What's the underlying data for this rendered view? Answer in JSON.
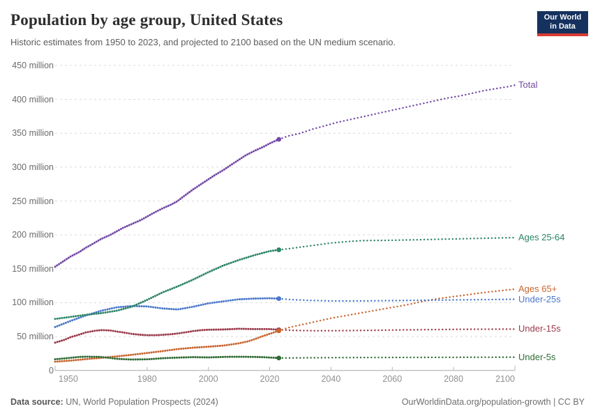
{
  "header": {
    "title": "Population by age group, United States",
    "subtitle": "Historic estimates from 1950 to 2023, and projected to 2100 based on the UN medium scenario."
  },
  "logo": {
    "line1": "Our World",
    "line2": "in Data",
    "bg_color": "#15315e",
    "accent_color": "#d83c32"
  },
  "footer": {
    "source_label": "Data source:",
    "source_value": " UN, World Population Prospects (2024)",
    "right_text": "OurWorldinData.org/population-growth | CC BY"
  },
  "chart_data": {
    "type": "line",
    "title": "Population by age group, United States",
    "subtitle": "Historic estimates from 1950 to 2023, and projected to 2100 based on the UN medium scenario.",
    "unit": "people",
    "x_range": [
      1950,
      2100
    ],
    "historic_end_year": 2023,
    "grid": true,
    "legend_position": "right-edge-labels",
    "y_ticks": [
      {
        "value": 0,
        "label": "0"
      },
      {
        "value": 50,
        "label": "50 million"
      },
      {
        "value": 100,
        "label": "100 million"
      },
      {
        "value": 150,
        "label": "150 million"
      },
      {
        "value": 200,
        "label": "200 million"
      },
      {
        "value": 250,
        "label": "250 million"
      },
      {
        "value": 300,
        "label": "300 million"
      },
      {
        "value": 350,
        "label": "350 million"
      },
      {
        "value": 400,
        "label": "400 million"
      },
      {
        "value": 450,
        "label": "450 million"
      }
    ],
    "x_ticks": [
      1950,
      1980,
      2000,
      2020,
      2040,
      2060,
      2080,
      2100
    ],
    "series": [
      {
        "name": "Under-15s",
        "slug": "under-15s",
        "color": "#9a3a4a",
        "historic": [
          [
            1950,
            41
          ],
          [
            1953,
            45
          ],
          [
            1955,
            49
          ],
          [
            1958,
            53
          ],
          [
            1960,
            56
          ],
          [
            1963,
            58.5
          ],
          [
            1965,
            59.5
          ],
          [
            1968,
            59
          ],
          [
            1970,
            57.5
          ],
          [
            1973,
            55.5
          ],
          [
            1975,
            54
          ],
          [
            1978,
            52.5
          ],
          [
            1980,
            52
          ],
          [
            1983,
            52
          ],
          [
            1985,
            52.5
          ],
          [
            1988,
            53.5
          ],
          [
            1990,
            54.5
          ],
          [
            1993,
            56.5
          ],
          [
            1995,
            58
          ],
          [
            1998,
            59.5
          ],
          [
            2000,
            60
          ],
          [
            2005,
            60.5
          ],
          [
            2010,
            61.5
          ],
          [
            2015,
            61
          ],
          [
            2020,
            61
          ],
          [
            2023,
            60
          ]
        ],
        "projected": [
          [
            2023,
            60
          ],
          [
            2028,
            59
          ],
          [
            2035,
            58.5
          ],
          [
            2045,
            58.7
          ],
          [
            2055,
            59.2
          ],
          [
            2065,
            59.8
          ],
          [
            2075,
            60.3
          ],
          [
            2085,
            60.8
          ],
          [
            2100,
            61
          ]
        ]
      },
      {
        "name": "Ages 65+",
        "slug": "ages-65plus",
        "color": "#c8652f",
        "historic": [
          [
            1950,
            12.8
          ],
          [
            1955,
            14.5
          ],
          [
            1960,
            16.7
          ],
          [
            1965,
            18.5
          ],
          [
            1970,
            20.7
          ],
          [
            1975,
            23
          ],
          [
            1980,
            25.7
          ],
          [
            1985,
            28.5
          ],
          [
            1990,
            31.5
          ],
          [
            1995,
            33.5
          ],
          [
            2000,
            35
          ],
          [
            2005,
            36.7
          ],
          [
            2010,
            40
          ],
          [
            2013,
            43
          ],
          [
            2015,
            46
          ],
          [
            2018,
            51
          ],
          [
            2020,
            54
          ],
          [
            2023,
            58.5
          ]
        ],
        "projected": [
          [
            2023,
            58.5
          ],
          [
            2026,
            63
          ],
          [
            2030,
            67
          ],
          [
            2035,
            72
          ],
          [
            2040,
            77
          ],
          [
            2045,
            81
          ],
          [
            2050,
            85
          ],
          [
            2055,
            89
          ],
          [
            2060,
            93
          ],
          [
            2065,
            97
          ],
          [
            2070,
            102
          ],
          [
            2075,
            106
          ],
          [
            2080,
            109
          ],
          [
            2085,
            112
          ],
          [
            2090,
            115
          ],
          [
            2095,
            117.5
          ],
          [
            2100,
            120
          ]
        ]
      },
      {
        "name": "Under-5s",
        "slug": "under-5s",
        "color": "#2f6b35",
        "historic": [
          [
            1950,
            16.4
          ],
          [
            1953,
            17.7
          ],
          [
            1955,
            18.6
          ],
          [
            1958,
            19.9
          ],
          [
            1960,
            20.3
          ],
          [
            1963,
            20.1
          ],
          [
            1965,
            19.8
          ],
          [
            1968,
            18.3
          ],
          [
            1970,
            17.2
          ],
          [
            1973,
            16.4
          ],
          [
            1975,
            16.1
          ],
          [
            1978,
            16.2
          ],
          [
            1980,
            16.5
          ],
          [
            1983,
            17.3
          ],
          [
            1985,
            18
          ],
          [
            1988,
            18.6
          ],
          [
            1990,
            18.9
          ],
          [
            1993,
            19.3
          ],
          [
            1995,
            19.6
          ],
          [
            1998,
            19.3
          ],
          [
            2000,
            19.2
          ],
          [
            2003,
            19.6
          ],
          [
            2005,
            19.9
          ],
          [
            2008,
            20.1
          ],
          [
            2010,
            20.2
          ],
          [
            2013,
            20
          ],
          [
            2015,
            19.9
          ],
          [
            2018,
            19.5
          ],
          [
            2020,
            19
          ],
          [
            2023,
            18.3
          ]
        ],
        "projected": [
          [
            2023,
            18.3
          ],
          [
            2030,
            18.5
          ],
          [
            2040,
            18.8
          ],
          [
            2050,
            19
          ],
          [
            2060,
            19.1
          ],
          [
            2070,
            19.2
          ],
          [
            2080,
            19.3
          ],
          [
            2090,
            19.4
          ],
          [
            2100,
            19.5
          ]
        ]
      },
      {
        "name": "Under-25s",
        "slug": "under-25s",
        "color": "#4a77c9",
        "historic": [
          [
            1950,
            64
          ],
          [
            1955,
            73
          ],
          [
            1960,
            81
          ],
          [
            1965,
            88
          ],
          [
            1970,
            93
          ],
          [
            1975,
            95
          ],
          [
            1980,
            94.5
          ],
          [
            1985,
            91.5
          ],
          [
            1990,
            90
          ],
          [
            1995,
            94
          ],
          [
            2000,
            99
          ],
          [
            2005,
            102
          ],
          [
            2010,
            105
          ],
          [
            2015,
            106
          ],
          [
            2020,
            106.5
          ],
          [
            2023,
            106
          ]
        ],
        "projected": [
          [
            2023,
            106
          ],
          [
            2027,
            104.5
          ],
          [
            2032,
            103.5
          ],
          [
            2040,
            102.5
          ],
          [
            2050,
            102.5
          ],
          [
            2060,
            103
          ],
          [
            2070,
            103.5
          ],
          [
            2080,
            104
          ],
          [
            2090,
            104.5
          ],
          [
            2100,
            105
          ]
        ]
      },
      {
        "name": "Ages 25-64",
        "slug": "ages-25-64",
        "color": "#2c8465",
        "historic": [
          [
            1950,
            76
          ],
          [
            1955,
            79
          ],
          [
            1960,
            82
          ],
          [
            1965,
            84.5
          ],
          [
            1970,
            88
          ],
          [
            1975,
            94
          ],
          [
            1980,
            104
          ],
          [
            1985,
            115
          ],
          [
            1990,
            124
          ],
          [
            1995,
            134
          ],
          [
            2000,
            145
          ],
          [
            2005,
            155
          ],
          [
            2010,
            163
          ],
          [
            2015,
            170
          ],
          [
            2020,
            176
          ],
          [
            2023,
            178
          ]
        ],
        "projected": [
          [
            2023,
            178
          ],
          [
            2027,
            180
          ],
          [
            2030,
            182
          ],
          [
            2035,
            185
          ],
          [
            2040,
            188
          ],
          [
            2045,
            190
          ],
          [
            2050,
            191.5
          ],
          [
            2060,
            192
          ],
          [
            2070,
            193
          ],
          [
            2080,
            194
          ],
          [
            2090,
            195
          ],
          [
            2100,
            196
          ]
        ]
      },
      {
        "name": "Total",
        "slug": "total",
        "color": "#7249a5",
        "historic": [
          [
            1950,
            153
          ],
          [
            1952,
            159
          ],
          [
            1955,
            168
          ],
          [
            1958,
            175
          ],
          [
            1960,
            181
          ],
          [
            1962,
            186
          ],
          [
            1965,
            194
          ],
          [
            1968,
            200
          ],
          [
            1970,
            205
          ],
          [
            1972,
            210
          ],
          [
            1975,
            216
          ],
          [
            1978,
            222
          ],
          [
            1980,
            227
          ],
          [
            1982,
            232
          ],
          [
            1985,
            239
          ],
          [
            1988,
            245
          ],
          [
            1990,
            250
          ],
          [
            1992,
            257
          ],
          [
            1995,
            267
          ],
          [
            1998,
            276
          ],
          [
            2000,
            282
          ],
          [
            2002,
            288
          ],
          [
            2005,
            296
          ],
          [
            2008,
            305
          ],
          [
            2010,
            311
          ],
          [
            2012,
            317
          ],
          [
            2015,
            324
          ],
          [
            2018,
            330
          ],
          [
            2020,
            335
          ],
          [
            2023,
            341
          ]
        ],
        "projected": [
          [
            2023,
            341
          ],
          [
            2026,
            346
          ],
          [
            2030,
            350
          ],
          [
            2034,
            356
          ],
          [
            2038,
            361
          ],
          [
            2042,
            366
          ],
          [
            2046,
            370
          ],
          [
            2050,
            374
          ],
          [
            2054,
            378
          ],
          [
            2058,
            382
          ],
          [
            2062,
            386
          ],
          [
            2066,
            390
          ],
          [
            2070,
            394
          ],
          [
            2074,
            398
          ],
          [
            2078,
            402
          ],
          [
            2082,
            405
          ],
          [
            2086,
            409
          ],
          [
            2090,
            413
          ],
          [
            2094,
            416
          ],
          [
            2098,
            419
          ],
          [
            2100,
            421
          ]
        ]
      }
    ]
  }
}
